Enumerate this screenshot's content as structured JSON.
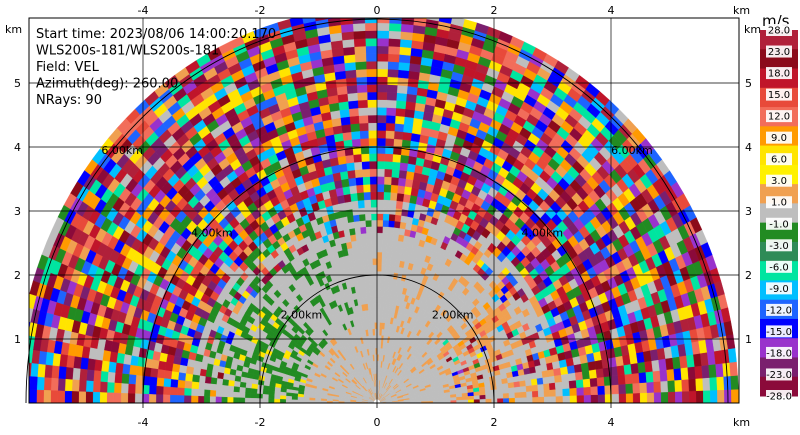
{
  "chart_data": {
    "type": "heatmap",
    "plot_kind": "radar RHI/sector velocity display",
    "x_ticks": [
      -4,
      -2,
      0,
      2,
      4
    ],
    "y_ticks": [
      1,
      2,
      3,
      4,
      5
    ],
    "x_unit": "km",
    "y_unit": "km",
    "xlim": [
      -5.9,
      6.2
    ],
    "ylim": [
      0,
      6.0
    ],
    "range_rings_km": [
      2,
      4,
      6
    ],
    "ring_labels": [
      "2.00km",
      "4.00km",
      "6.00km"
    ],
    "grid": true,
    "info_lines": [
      "Start time: 2023/08/06 14:00:20.170",
      "WLS200s-181/WLS200s-181",
      "Field: VEL",
      "Azimuth(deg): 260.00",
      "NRays: 90"
    ],
    "colorbar": {
      "title": "m/s",
      "tick_labels": [
        "28.0",
        "23.0",
        "18.0",
        "15.0",
        "12.0",
        "9.0",
        "6.0",
        "3.0",
        "1.0",
        "-1.0",
        "-3.0",
        "-6.0",
        "-9.0",
        "-12.0",
        "-15.0",
        "-18.0",
        "-23.0",
        "-28.0"
      ],
      "colors": [
        "#b0203a",
        "#8b0a1a",
        "#c0152a",
        "#e84a3a",
        "#f26d5a",
        "#ff9a00",
        "#ffe400",
        "#fff100",
        "#f0a050",
        "#bebebe",
        "#228b22",
        "#2e8b57",
        "#00e5a0",
        "#00bfff",
        "#1e64ff",
        "#0000ff",
        "#9932cc",
        "#7a1f6e",
        "#8b0a3a"
      ]
    }
  }
}
